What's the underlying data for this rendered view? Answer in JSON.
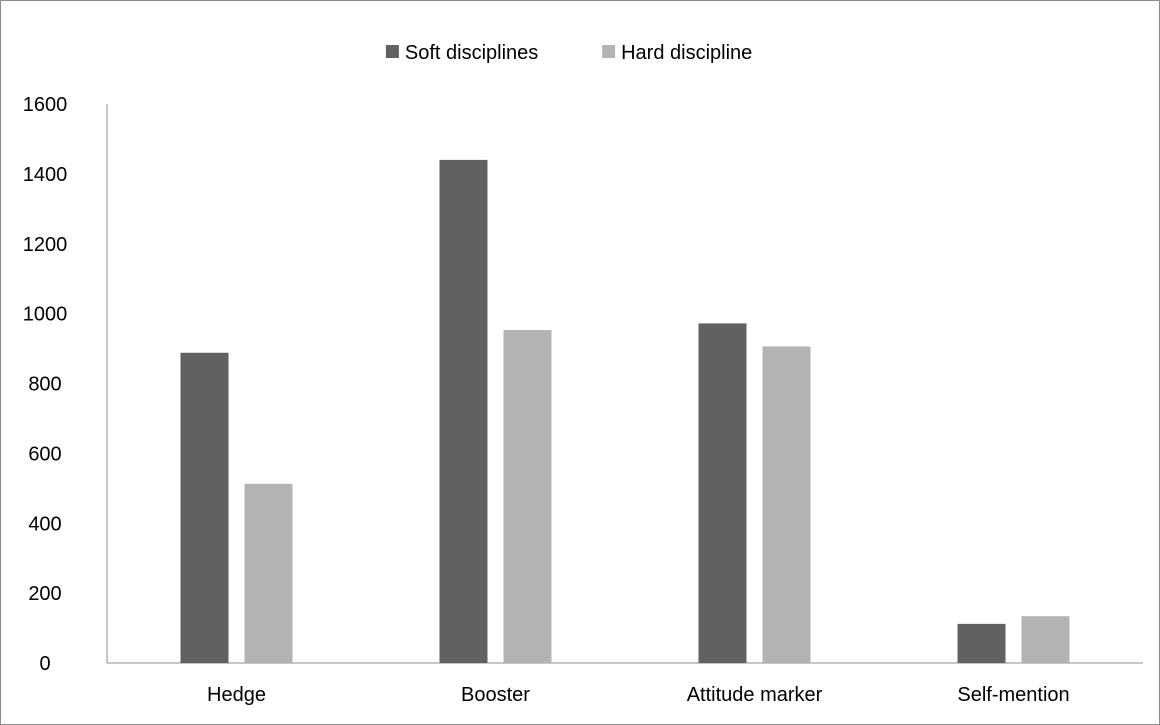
{
  "chart_data": {
    "type": "bar",
    "categories": [
      "Hedge",
      "Booster",
      "Attitude marker",
      "Self-mention"
    ],
    "series": [
      {
        "name": "Soft disciplines",
        "values": [
          888,
          1440,
          972,
          112
        ],
        "color": "#616161"
      },
      {
        "name": "Hard discipline",
        "values": [
          513,
          953,
          906,
          134
        ],
        "color": "#b3b3b3"
      }
    ],
    "ylim": [
      0,
      1600
    ],
    "yticks": [
      0,
      200,
      400,
      600,
      800,
      1000,
      1200,
      1400,
      1600
    ],
    "title": "",
    "xlabel": "",
    "ylabel": "",
    "grid": false,
    "legend_position": "top-center"
  }
}
